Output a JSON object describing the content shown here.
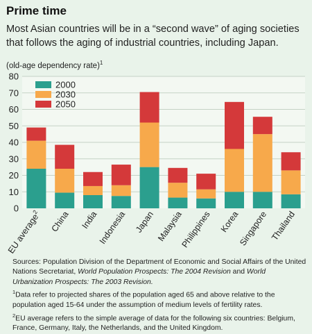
{
  "title": "Prime time",
  "subtitle": "Most Asian countries will be in a “second wave” of aging societies that follows the aging of industrial countries, including Japan.",
  "unit_label": "(old-age dependency rate)",
  "unit_footnote": "1",
  "colors": {
    "background": "#e9f3ea",
    "plot_area": "#f3f8f2",
    "gridline": "#c5d2c5",
    "series_2000": "#2b9f8e",
    "series_2030": "#f7a94b",
    "series_2050": "#d4393a"
  },
  "chart_data": {
    "type": "bar",
    "stacked": true,
    "categories": [
      "EU average",
      "China",
      "India",
      "Indonesia",
      "Japan",
      "Malaysia",
      "Philippines",
      "Korea",
      "Singapore",
      "Thailand"
    ],
    "category_footnotes": {
      "EU average": "2"
    },
    "series": [
      {
        "name": "2000",
        "values": [
          24,
          9.5,
          8,
          7.5,
          25,
          6.5,
          6,
          10,
          10,
          8.5
        ]
      },
      {
        "name": "2030",
        "values": [
          17,
          14.5,
          5.5,
          6.5,
          27,
          9,
          5.5,
          26,
          35,
          14.5
        ]
      },
      {
        "name": "2050",
        "values": [
          8,
          14.5,
          8.5,
          12.5,
          18.5,
          9,
          9.5,
          28.5,
          10.5,
          11
        ]
      }
    ],
    "yticks": [
      0,
      10,
      20,
      30,
      40,
      50,
      60,
      70,
      80
    ],
    "ylim": [
      0,
      80
    ],
    "grid": true,
    "legend_position": "top-left"
  },
  "notes": {
    "sources_prefix": "Sources: Population Division of the Department of Economic and Social Affairs of the United Nations Secretariat, ",
    "sources_italic1": "World Population Prospects: The 2004 Revision",
    "sources_mid": " and ",
    "sources_italic2": "World Urbanization Prospects: The 2003 Revision.",
    "note1_mark": "1",
    "note1": "Data refer to projected shares of the population aged 65 and above relative to the population aged 15-64 under the assumption of medium levels of fertility rates.",
    "note2_mark": "2",
    "note2": "EU average refers to the simple average of data for the following six countries: Belgium, France, Germany, Italy, the Netherlands, and the United Kingdom."
  }
}
